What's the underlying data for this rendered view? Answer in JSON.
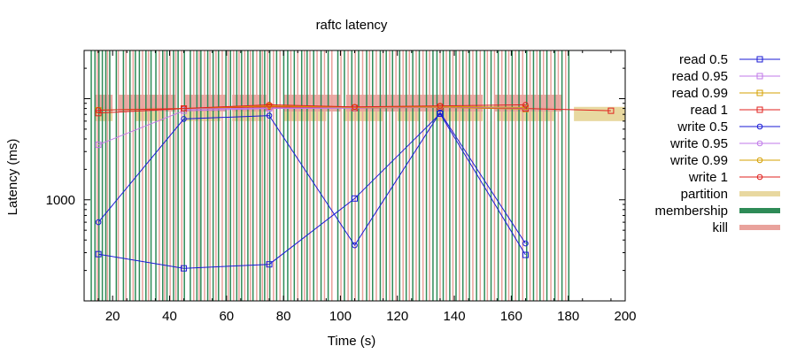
{
  "chart_data": {
    "type": "line",
    "title": "raftc latency",
    "xlabel": "Time (s)",
    "ylabel": "Latency (ms)",
    "xlim": [
      10,
      200
    ],
    "ylim": [
      100,
      30000
    ],
    "yscale": "log",
    "x_ticks": [
      20,
      40,
      60,
      80,
      100,
      120,
      140,
      160,
      180,
      200
    ],
    "y_ticks": [
      1000
    ],
    "legend_position": "right",
    "series": [
      {
        "name": "read 0.5",
        "color": "#1a1ad6",
        "marker": "square",
        "points": [
          [
            15,
            290
          ],
          [
            45,
            210
          ],
          [
            75,
            230
          ],
          [
            105,
            1030
          ],
          [
            135,
            7100
          ],
          [
            165,
            285
          ]
        ]
      },
      {
        "name": "read 0.95",
        "color": "#c07ae8",
        "marker": "square",
        "points": [
          [
            15,
            3500
          ],
          [
            45,
            7600
          ],
          [
            75,
            8000
          ],
          [
            105,
            8050
          ],
          [
            135,
            8200
          ],
          [
            165,
            7900
          ]
        ]
      },
      {
        "name": "read 0.99",
        "color": "#d6a000",
        "marker": "square",
        "points": [
          [
            15,
            7700
          ],
          [
            45,
            8000
          ],
          [
            75,
            8400
          ],
          [
            105,
            8100
          ],
          [
            135,
            8200
          ],
          [
            165,
            7900
          ]
        ]
      },
      {
        "name": "read 1",
        "color": "#e0211e",
        "marker": "square",
        "points": [
          [
            15,
            7200
          ],
          [
            45,
            8000
          ],
          [
            75,
            8300
          ],
          [
            105,
            8100
          ],
          [
            135,
            8300
          ],
          [
            165,
            8000
          ],
          [
            195,
            7600
          ]
        ]
      },
      {
        "name": "write 0.5",
        "color": "#1a1ad6",
        "marker": "circle",
        "points": [
          [
            15,
            600
          ],
          [
            45,
            6300
          ],
          [
            75,
            6800
          ],
          [
            105,
            355
          ],
          [
            135,
            7300
          ],
          [
            165,
            370
          ]
        ]
      },
      {
        "name": "write 0.95",
        "color": "#c07ae8",
        "marker": "circle",
        "points": [
          [
            45,
            7900
          ],
          [
            75,
            8100
          ],
          [
            105,
            8100
          ],
          [
            135,
            8300
          ],
          [
            165,
            8100
          ]
        ]
      },
      {
        "name": "write 0.99",
        "color": "#d6a000",
        "marker": "circle",
        "points": [
          [
            45,
            8000
          ],
          [
            75,
            8500
          ],
          [
            105,
            8200
          ],
          [
            135,
            8400
          ],
          [
            165,
            8200
          ]
        ]
      },
      {
        "name": "write 1",
        "color": "#e0211e",
        "marker": "circle",
        "points": [
          [
            15,
            7700
          ],
          [
            45,
            8000
          ],
          [
            75,
            8700
          ],
          [
            105,
            8300
          ],
          [
            135,
            8500
          ],
          [
            165,
            8700
          ]
        ]
      }
    ],
    "bands": [
      {
        "name": "partition",
        "color": "#e8d8a0",
        "y_range": [
          6000,
          8300
        ],
        "spans": [
          [
            14,
            20
          ],
          [
            28,
            38
          ],
          [
            45,
            58
          ],
          [
            62,
            73
          ],
          [
            80,
            95
          ],
          [
            101,
            115
          ],
          [
            120,
            128
          ],
          [
            130,
            150
          ],
          [
            155,
            175
          ],
          [
            182,
            200
          ]
        ]
      },
      {
        "name": "membership",
        "color": "#2e8b57",
        "times": [
          12.5,
          13.8,
          15.2,
          16.4,
          17.6,
          19.0,
          21.3,
          23.8,
          26.1,
          28.0,
          29.4,
          31.7,
          33.5,
          35.2,
          37.6,
          39.1,
          41.4,
          43.0,
          45.2,
          47.3,
          49.6,
          51.0,
          53.4,
          55.3,
          57.2,
          59.8,
          61.4,
          63.6,
          65.3,
          67.5,
          69.3,
          71.8,
          73.4,
          75.2,
          77.6,
          80.1,
          81.5,
          83.8,
          86.4,
          88.3,
          90.6,
          93.2,
          95.7,
          99.1,
          101.4,
          104.0,
          106.4,
          109.2,
          111.3,
          114.0,
          116.1,
          118.3,
          120.8,
          123.1,
          125.4,
          127.7,
          130.2,
          132.5,
          133.9,
          136.1,
          138.4,
          140.6,
          143.0,
          145.3,
          147.8,
          150.6,
          152.9,
          155.4,
          158.0,
          160.3,
          162.7,
          165.4,
          167.8,
          170.1,
          172.5,
          175.3,
          177.8,
          180.2
        ]
      },
      {
        "name": "kill",
        "color": "#e9a29c",
        "times": [
          14.6,
          18.2,
          22.0,
          24.7,
          27.2,
          30.5,
          32.6,
          36.4,
          38.3,
          40.2,
          42.2,
          44.3,
          48.5,
          50.4,
          52.3,
          54.2,
          56.3,
          58.5,
          60.6,
          62.5,
          64.4,
          66.4,
          68.4,
          70.6,
          72.6,
          74.4,
          76.5,
          78.8,
          82.6,
          85.0,
          87.4,
          89.3,
          91.8,
          94.4,
          97.0,
          100.2,
          102.7,
          105.2,
          107.8,
          110.2,
          112.6,
          115.0,
          117.3,
          119.5,
          122.0,
          124.2,
          126.6,
          129.0,
          131.3,
          135.0,
          137.2,
          139.5,
          141.8,
          144.2,
          146.5,
          149.1,
          151.6,
          154.1,
          156.7,
          159.1,
          161.5,
          164.0,
          166.6,
          169.0,
          171.3,
          173.9,
          176.5,
          179.1
        ]
      }
    ]
  }
}
